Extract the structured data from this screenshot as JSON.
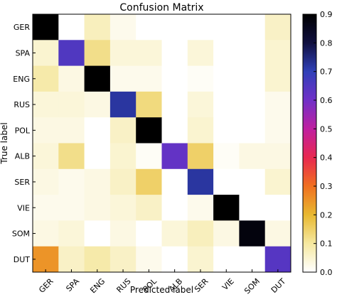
{
  "chart_data": {
    "type": "heatmap",
    "title": "Confusion Matrix",
    "xlabel": "Predicted label",
    "ylabel": "True label",
    "categories": [
      "GER",
      "SPA",
      "ENG",
      "RUS",
      "POL",
      "ALB",
      "SER",
      "VIE",
      "SOM",
      "DUT"
    ],
    "matrix": [
      [
        0.99,
        0.0,
        0.07,
        0.02,
        0.0,
        0.0,
        0.0,
        0.0,
        0.0,
        0.06
      ],
      [
        0.05,
        0.65,
        0.12,
        0.04,
        0.04,
        0.0,
        0.04,
        0.0,
        0.0,
        0.05
      ],
      [
        0.09,
        0.03,
        0.9,
        0.02,
        0.02,
        0.0,
        0.01,
        0.0,
        0.0,
        0.05
      ],
      [
        0.04,
        0.04,
        0.03,
        0.72,
        0.13,
        0.0,
        0.04,
        0.0,
        0.0,
        0.02
      ],
      [
        0.03,
        0.03,
        0.0,
        0.06,
        0.96,
        0.0,
        0.05,
        0.0,
        0.0,
        0.02
      ],
      [
        0.04,
        0.12,
        0.0,
        0.05,
        0.01,
        0.62,
        0.15,
        0.01,
        0.03,
        0.03
      ],
      [
        0.03,
        0.02,
        0.03,
        0.06,
        0.15,
        0.0,
        0.72,
        0.0,
        0.0,
        0.05
      ],
      [
        0.02,
        0.02,
        0.03,
        0.04,
        0.06,
        0.0,
        0.02,
        0.97,
        0.0,
        0.0
      ],
      [
        0.03,
        0.04,
        0.0,
        0.03,
        0.0,
        0.04,
        0.07,
        0.03,
        0.88,
        0.03
      ],
      [
        0.25,
        0.06,
        0.09,
        0.06,
        0.02,
        0.0,
        0.05,
        0.0,
        0.0,
        0.64
      ]
    ],
    "zlim": [
      0.0,
      0.9
    ],
    "colorbar": {
      "ticks": [
        "0.0",
        "0.1",
        "0.2",
        "0.3",
        "0.4",
        "0.5",
        "0.6",
        "0.7",
        "0.8",
        "0.9"
      ],
      "colormap_stops": [
        "#ffffff",
        "#f5e8a0",
        "#e8b830",
        "#f07020",
        "#e82850",
        "#c020a0",
        "#7030c8",
        "#3040b8",
        "#101040",
        "#000000"
      ]
    },
    "grid": false
  }
}
